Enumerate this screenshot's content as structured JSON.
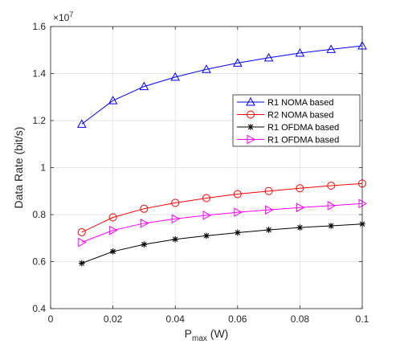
{
  "chart_data": {
    "type": "line",
    "xlabel_main": "P",
    "xlabel_sub": "max",
    "xlabel_unit": " (W)",
    "ylabel": "Data Rate (bit/s)",
    "exponent_base": "×10",
    "exponent_power": "7",
    "xlim": [
      0,
      0.1
    ],
    "ylim": [
      0.4,
      1.6
    ],
    "y_multiplier": 10000000,
    "grid": true,
    "legend_position": "center-right",
    "x_ticks": [
      0,
      0.02,
      0.04,
      0.06,
      0.08,
      0.1
    ],
    "x_tick_labels": [
      "0",
      "0.02",
      "0.04",
      "0.06",
      "0.08",
      "0.1"
    ],
    "y_ticks": [
      0.4,
      0.6,
      0.8,
      1.0,
      1.2,
      1.4,
      1.6
    ],
    "y_tick_labels": [
      "0.4",
      "0.6",
      "0.8",
      "1",
      "1.2",
      "1.4",
      "1.6"
    ],
    "x": [
      0.01,
      0.02,
      0.03,
      0.04,
      0.05,
      0.06,
      0.07,
      0.08,
      0.09,
      0.1
    ],
    "series": [
      {
        "name": "R1 NOMA based",
        "color": "#0000ff",
        "marker": "triangle-up",
        "values": [
          1.185,
          1.285,
          1.345,
          1.385,
          1.418,
          1.445,
          1.467,
          1.487,
          1.503,
          1.518
        ]
      },
      {
        "name": "R2 NOMA based",
        "color": "#ff0000",
        "marker": "circle",
        "values": [
          0.725,
          0.788,
          0.825,
          0.85,
          0.87,
          0.887,
          0.9,
          0.912,
          0.923,
          0.932
        ]
      },
      {
        "name": "R1 OFDMA based",
        "color": "#000000",
        "marker": "asterisk",
        "values": [
          0.593,
          0.643,
          0.673,
          0.695,
          0.71,
          0.723,
          0.735,
          0.745,
          0.752,
          0.76
        ]
      },
      {
        "name": "R1 OFDMA based",
        "color": "#ff00ff",
        "marker": "triangle-right",
        "values": [
          0.682,
          0.733,
          0.763,
          0.782,
          0.797,
          0.81,
          0.82,
          0.83,
          0.838,
          0.847
        ]
      }
    ]
  }
}
